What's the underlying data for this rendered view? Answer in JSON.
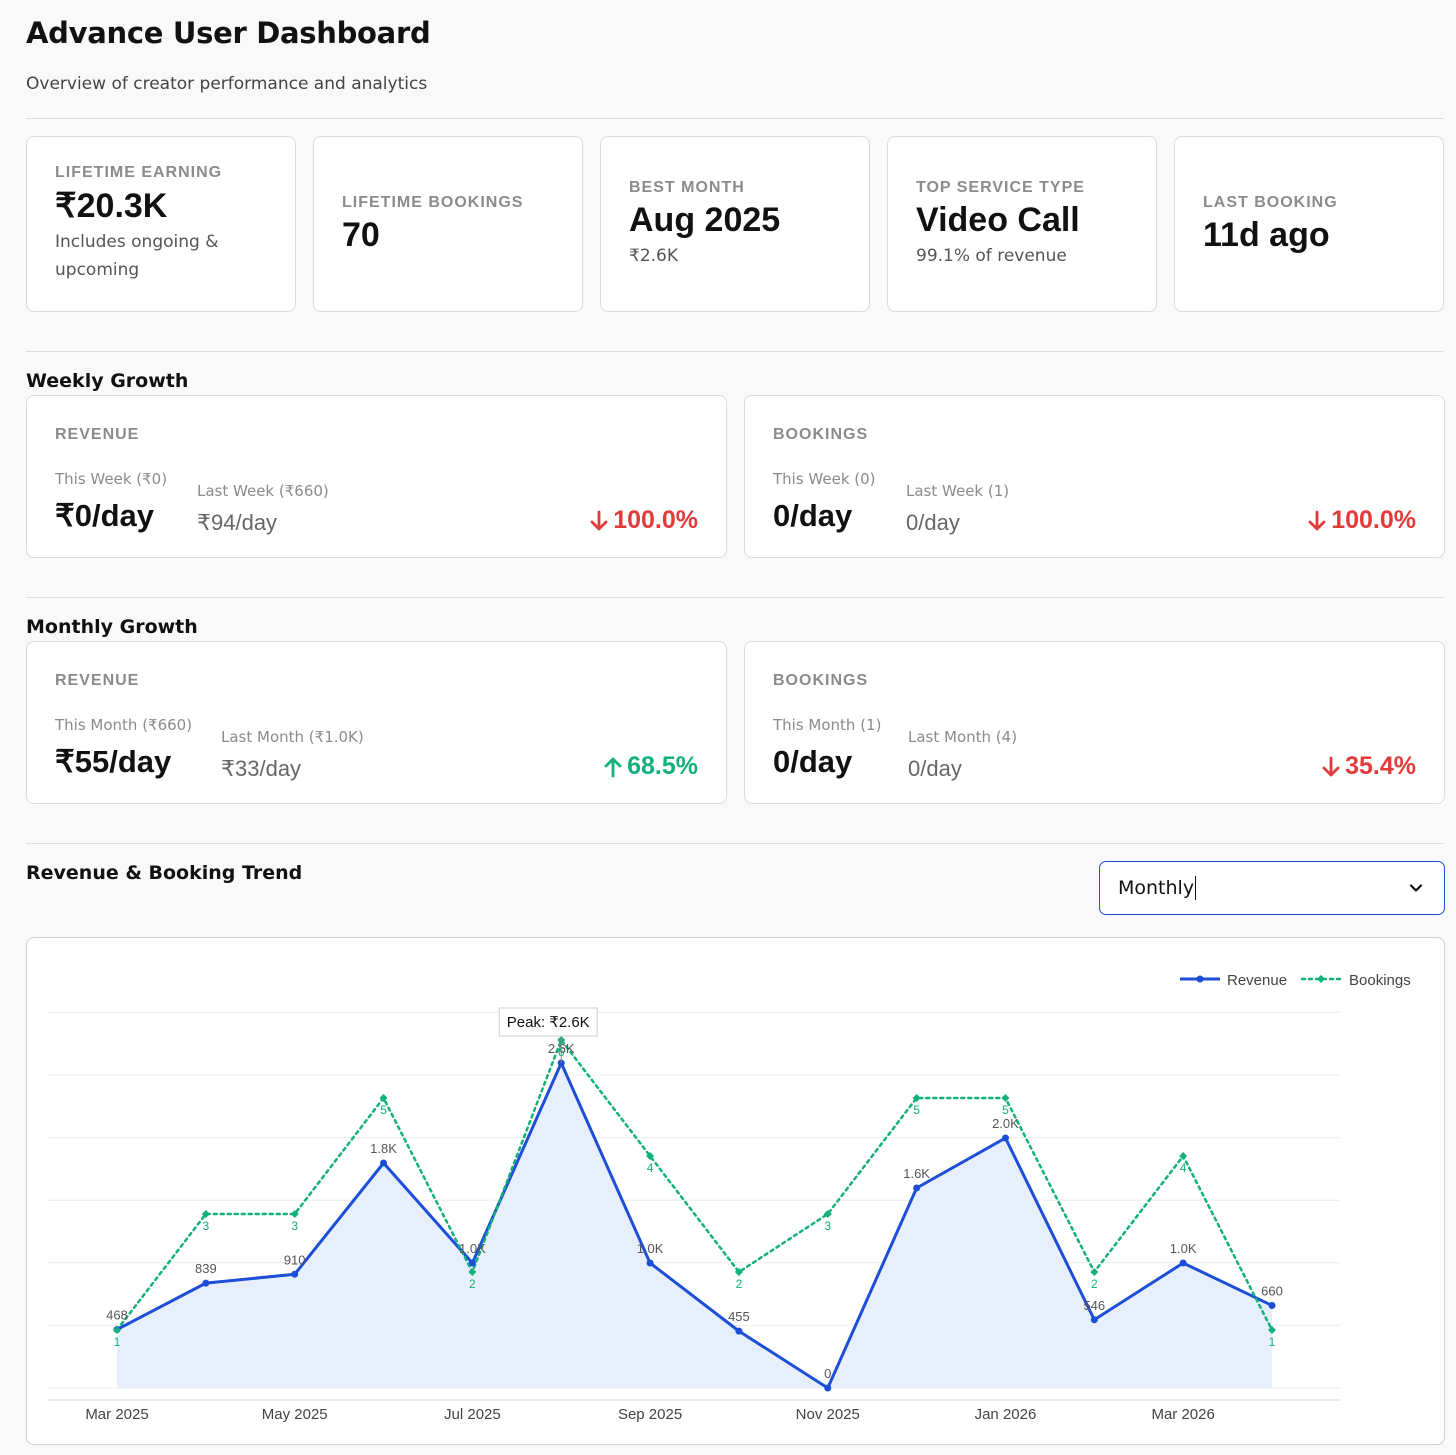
{
  "header": {
    "title": "Advance User Dashboard",
    "subtitle": "Overview of creator performance and analytics"
  },
  "stats": [
    {
      "label": "LIFETIME EARNING",
      "value": "₹20.3K",
      "sub": "Includes ongoing & upcoming"
    },
    {
      "label": "LIFETIME BOOKINGS",
      "value": "70",
      "sub": ""
    },
    {
      "label": "BEST MONTH",
      "value": "Aug 2025",
      "sub": "₹2.6K"
    },
    {
      "label": "TOP SERVICE TYPE",
      "value": "Video Call",
      "sub": "99.1% of revenue"
    },
    {
      "label": "LAST BOOKING",
      "value": "11d ago",
      "sub": ""
    }
  ],
  "weekly": {
    "title": "Weekly Growth",
    "revenue": {
      "label": "REVENUE",
      "this_label": "This Week (₹0)",
      "this_value": "₹0/day",
      "last_label": "Last Week (₹660)",
      "last_value": "₹94/day",
      "change": "100.0%",
      "direction": "down"
    },
    "bookings": {
      "label": "BOOKINGS",
      "this_label": "This Week (0)",
      "this_value": "0/day",
      "last_label": "Last Week (1)",
      "last_value": "0/day",
      "change": "100.0%",
      "direction": "down"
    }
  },
  "monthly": {
    "title": "Monthly Growth",
    "revenue": {
      "label": "REVENUE",
      "this_label": "This Month (₹660)",
      "this_value": "₹55/day",
      "last_label": "Last Month (₹1.0K)",
      "last_value": "₹33/day",
      "change": "68.5%",
      "direction": "up"
    },
    "bookings": {
      "label": "BOOKINGS",
      "this_label": "This Month (1)",
      "this_value": "0/day",
      "last_label": "Last Month (4)",
      "last_value": "0/day",
      "change": "35.4%",
      "direction": "down"
    }
  },
  "trend": {
    "title": "Revenue & Booking Trend",
    "period_select": "Monthly"
  },
  "colors": {
    "revenue": "#1d4ed8",
    "bookings": "#12b07a",
    "down": "#e23b3b",
    "up": "#12b07a"
  },
  "chart_data": {
    "type": "line",
    "x": [
      "Mar 2025",
      "Apr 2025",
      "May 2025",
      "Jun 2025",
      "Jul 2025",
      "Aug 2025",
      "Sep 2025",
      "Oct 2025",
      "Nov 2025",
      "Dec 2025",
      "Jan 2026",
      "Feb 2026",
      "Mar 2026",
      "Apr 2026"
    ],
    "tick_labels": [
      "Mar 2025",
      "May 2025",
      "Jul 2025",
      "Sep 2025",
      "Nov 2025",
      "Jan 2026",
      "Mar 2026"
    ],
    "tick_indices": [
      0,
      2,
      4,
      6,
      8,
      10,
      12
    ],
    "series": [
      {
        "name": "Revenue",
        "values": [
          468,
          839,
          910,
          1800,
          1000,
          2600,
          1000,
          455,
          0,
          1600,
          2000,
          546,
          1000,
          660
        ],
        "labels": [
          "468",
          "839",
          "910",
          "1.8K",
          "1.0K",
          "2.6K",
          "1.0K",
          "455",
          "0",
          "1.6K",
          "2.0K",
          "546",
          "1.0K",
          "660"
        ]
      },
      {
        "name": "Bookings",
        "values": [
          1,
          3,
          3,
          5,
          2,
          6,
          4,
          2,
          3,
          5,
          5,
          2,
          4,
          1
        ],
        "labels": [
          "1",
          "3",
          "3",
          "5",
          "2",
          "6",
          "4",
          "2",
          "3",
          "5",
          "5",
          "2",
          "4",
          "1"
        ]
      }
    ],
    "annotation": "Peak: ₹2.6K",
    "legend_position": "top-right",
    "revenue_ylim": [
      0,
      2600
    ],
    "bookings_ylim": [
      0,
      6
    ]
  }
}
